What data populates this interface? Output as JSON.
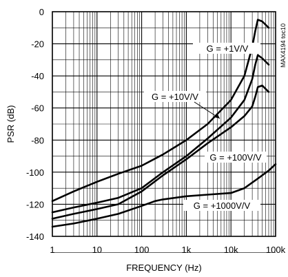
{
  "chart_data": {
    "type": "line",
    "code": "MAX4194 toc10",
    "xlabel": "FREQUENCY (Hz)",
    "ylabel": "PSR (dB)",
    "x_scale": "log",
    "xlim": [
      1,
      100000
    ],
    "ylim": [
      -140,
      0
    ],
    "x_ticks": [
      {
        "value": 1,
        "label": "1"
      },
      {
        "value": 10,
        "label": "10"
      },
      {
        "value": 100,
        "label": "100"
      },
      {
        "value": 1000,
        "label": "1k"
      },
      {
        "value": 10000,
        "label": "10k"
      },
      {
        "value": 100000,
        "label": "100k"
      }
    ],
    "y_ticks": [
      {
        "value": 0,
        "label": "0"
      },
      {
        "value": -20,
        "label": "-20"
      },
      {
        "value": -40,
        "label": "-40"
      },
      {
        "value": -60,
        "label": "-60"
      },
      {
        "value": -80,
        "label": "-80"
      },
      {
        "value": -100,
        "label": "-100"
      },
      {
        "value": -120,
        "label": "-120"
      },
      {
        "value": -140,
        "label": "-140"
      }
    ],
    "grid": true,
    "series": [
      {
        "name": "G = +1V/V",
        "x": [
          1,
          3,
          10,
          30,
          100,
          300,
          1000,
          3000,
          10000,
          20000,
          30000,
          35000,
          40000,
          50000,
          70000
        ],
        "y": [
          -118,
          -112,
          -106,
          -101,
          -96,
          -89,
          -80,
          -70,
          -55,
          -40,
          -22,
          -12,
          -5,
          -6,
          -10
        ]
      },
      {
        "name": "G = +10V/V",
        "x": [
          1,
          3,
          10,
          30,
          100,
          300,
          1000,
          3000,
          10000,
          20000,
          30000,
          35000,
          40000,
          50000,
          70000
        ],
        "y": [
          -125,
          -122,
          -119,
          -116,
          -110,
          -100,
          -90,
          -79,
          -66,
          -55,
          -42,
          -33,
          -27,
          -29,
          -33
        ]
      },
      {
        "name": "G = +100V/V",
        "x": [
          1,
          3,
          10,
          30,
          100,
          300,
          1000,
          3000,
          10000,
          20000,
          30000,
          35000,
          40000,
          50000,
          70000
        ],
        "y": [
          -129,
          -126,
          -123,
          -120,
          -112,
          -102,
          -92,
          -82,
          -72,
          -65,
          -59,
          -53,
          -47,
          -46,
          -50
        ]
      },
      {
        "name": "G = +1000V/V",
        "x": [
          1,
          3,
          10,
          30,
          100,
          200,
          300,
          1000,
          3000,
          10000,
          20000,
          40000,
          70000,
          100000
        ],
        "y": [
          -134,
          -132,
          -129,
          -126,
          -121,
          -118,
          -117,
          -115,
          -114,
          -113,
          -110,
          -104,
          -99,
          -95
        ]
      }
    ]
  }
}
